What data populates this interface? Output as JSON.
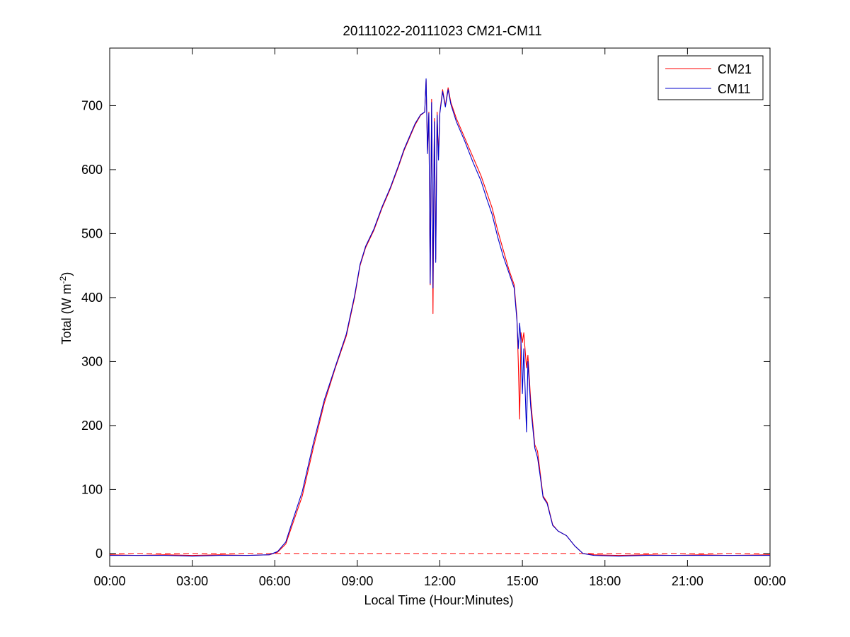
{
  "chart_data": {
    "type": "line",
    "title": "20111022-20111023 CM21-CM11",
    "xlabel": "Local Time (Hour:Minutes)",
    "ylabel_main": "Total (W m",
    "ylabel_sup": "-2",
    "ylabel_close": ")",
    "xlim": [
      0,
      24
    ],
    "ylim": [
      -20,
      790
    ],
    "x_ticks": [
      0,
      3,
      6,
      9,
      12,
      15,
      18,
      21,
      24
    ],
    "x_tick_labels": [
      "00:00",
      "03:00",
      "06:00",
      "09:00",
      "12:00",
      "15:00",
      "18:00",
      "21:00",
      "00:00"
    ],
    "y_ticks": [
      0,
      100,
      200,
      300,
      400,
      500,
      600,
      700
    ],
    "y_tick_labels": [
      "0",
      "100",
      "200",
      "300",
      "400",
      "500",
      "600",
      "700"
    ],
    "legend_position": "top-right",
    "grid": false,
    "reference_line": {
      "y": 0,
      "color": "#ff0000",
      "style": "dashed"
    },
    "series": [
      {
        "name": "CM21",
        "color": "#ff0000",
        "points": [
          [
            0.0,
            -2
          ],
          [
            1.0,
            -3
          ],
          [
            2.0,
            -2
          ],
          [
            3.0,
            -3
          ],
          [
            4.0,
            -2
          ],
          [
            5.0,
            -3
          ],
          [
            5.8,
            -2
          ],
          [
            6.1,
            2
          ],
          [
            6.4,
            15
          ],
          [
            6.6,
            40
          ],
          [
            7.0,
            90
          ],
          [
            7.4,
            165
          ],
          [
            7.8,
            235
          ],
          [
            8.2,
            290
          ],
          [
            8.6,
            340
          ],
          [
            8.9,
            400
          ],
          [
            9.1,
            450
          ],
          [
            9.3,
            478
          ],
          [
            9.6,
            505
          ],
          [
            9.9,
            540
          ],
          [
            10.2,
            570
          ],
          [
            10.5,
            605
          ],
          [
            10.7,
            630
          ],
          [
            10.9,
            650
          ],
          [
            11.1,
            670
          ],
          [
            11.3,
            685
          ],
          [
            11.45,
            690
          ],
          [
            11.5,
            740
          ],
          [
            11.55,
            630
          ],
          [
            11.6,
            690
          ],
          [
            11.65,
            420
          ],
          [
            11.7,
            710
          ],
          [
            11.75,
            375
          ],
          [
            11.8,
            680
          ],
          [
            11.85,
            460
          ],
          [
            11.9,
            690
          ],
          [
            11.95,
            620
          ],
          [
            12.0,
            690
          ],
          [
            12.1,
            725
          ],
          [
            12.2,
            700
          ],
          [
            12.3,
            728
          ],
          [
            12.4,
            705
          ],
          [
            12.6,
            680
          ],
          [
            12.9,
            650
          ],
          [
            13.2,
            620
          ],
          [
            13.5,
            590
          ],
          [
            13.7,
            565
          ],
          [
            13.9,
            540
          ],
          [
            14.1,
            505
          ],
          [
            14.3,
            475
          ],
          [
            14.5,
            445
          ],
          [
            14.7,
            420
          ],
          [
            14.8,
            370
          ],
          [
            14.85,
            300
          ],
          [
            14.9,
            210
          ],
          [
            14.95,
            345
          ],
          [
            15.0,
            330
          ],
          [
            15.05,
            345
          ],
          [
            15.15,
            290
          ],
          [
            15.2,
            310
          ],
          [
            15.3,
            240
          ],
          [
            15.45,
            170
          ],
          [
            15.55,
            160
          ],
          [
            15.65,
            125
          ],
          [
            15.75,
            90
          ],
          [
            15.9,
            80
          ],
          [
            16.1,
            45
          ],
          [
            16.3,
            35
          ],
          [
            16.6,
            28
          ],
          [
            16.9,
            12
          ],
          [
            17.2,
            0
          ],
          [
            17.6,
            -2
          ],
          [
            18.5,
            -3
          ],
          [
            19.5,
            -2
          ],
          [
            20.5,
            -3
          ],
          [
            21.5,
            -2
          ],
          [
            22.5,
            -3
          ],
          [
            24.0,
            -2
          ]
        ]
      },
      {
        "name": "CM11",
        "color": "#0000cc",
        "points": [
          [
            0.0,
            -3
          ],
          [
            1.0,
            -3
          ],
          [
            2.0,
            -3
          ],
          [
            3.0,
            -4
          ],
          [
            4.0,
            -3
          ],
          [
            5.0,
            -3
          ],
          [
            5.8,
            -2
          ],
          [
            6.1,
            3
          ],
          [
            6.4,
            18
          ],
          [
            6.6,
            45
          ],
          [
            7.0,
            97
          ],
          [
            7.4,
            172
          ],
          [
            7.8,
            240
          ],
          [
            8.2,
            292
          ],
          [
            8.6,
            343
          ],
          [
            8.9,
            403
          ],
          [
            9.1,
            452
          ],
          [
            9.3,
            480
          ],
          [
            9.6,
            507
          ],
          [
            9.9,
            542
          ],
          [
            10.2,
            572
          ],
          [
            10.5,
            607
          ],
          [
            10.7,
            632
          ],
          [
            10.9,
            652
          ],
          [
            11.1,
            672
          ],
          [
            11.3,
            686
          ],
          [
            11.45,
            690
          ],
          [
            11.5,
            742
          ],
          [
            11.55,
            625
          ],
          [
            11.6,
            688
          ],
          [
            11.65,
            422
          ],
          [
            11.7,
            705
          ],
          [
            11.75,
            415
          ],
          [
            11.8,
            675
          ],
          [
            11.85,
            455
          ],
          [
            11.9,
            685
          ],
          [
            11.95,
            615
          ],
          [
            12.0,
            688
          ],
          [
            12.1,
            722
          ],
          [
            12.2,
            698
          ],
          [
            12.3,
            725
          ],
          [
            12.4,
            702
          ],
          [
            12.6,
            675
          ],
          [
            12.9,
            645
          ],
          [
            13.2,
            612
          ],
          [
            13.5,
            582
          ],
          [
            13.7,
            555
          ],
          [
            13.9,
            530
          ],
          [
            14.1,
            495
          ],
          [
            14.3,
            465
          ],
          [
            14.5,
            440
          ],
          [
            14.7,
            415
          ],
          [
            14.8,
            365
          ],
          [
            14.85,
            320
          ],
          [
            14.9,
            360
          ],
          [
            14.95,
            330
          ],
          [
            15.0,
            250
          ],
          [
            15.05,
            320
          ],
          [
            15.15,
            190
          ],
          [
            15.2,
            300
          ],
          [
            15.3,
            230
          ],
          [
            15.45,
            165
          ],
          [
            15.55,
            150
          ],
          [
            15.65,
            120
          ],
          [
            15.75,
            88
          ],
          [
            15.9,
            78
          ],
          [
            16.1,
            44
          ],
          [
            16.3,
            35
          ],
          [
            16.6,
            28
          ],
          [
            16.9,
            12
          ],
          [
            17.2,
            0
          ],
          [
            17.6,
            -3
          ],
          [
            18.5,
            -4
          ],
          [
            19.5,
            -3
          ],
          [
            20.5,
            -3
          ],
          [
            21.5,
            -3
          ],
          [
            22.5,
            -3
          ],
          [
            24.0,
            -3
          ]
        ]
      }
    ]
  }
}
